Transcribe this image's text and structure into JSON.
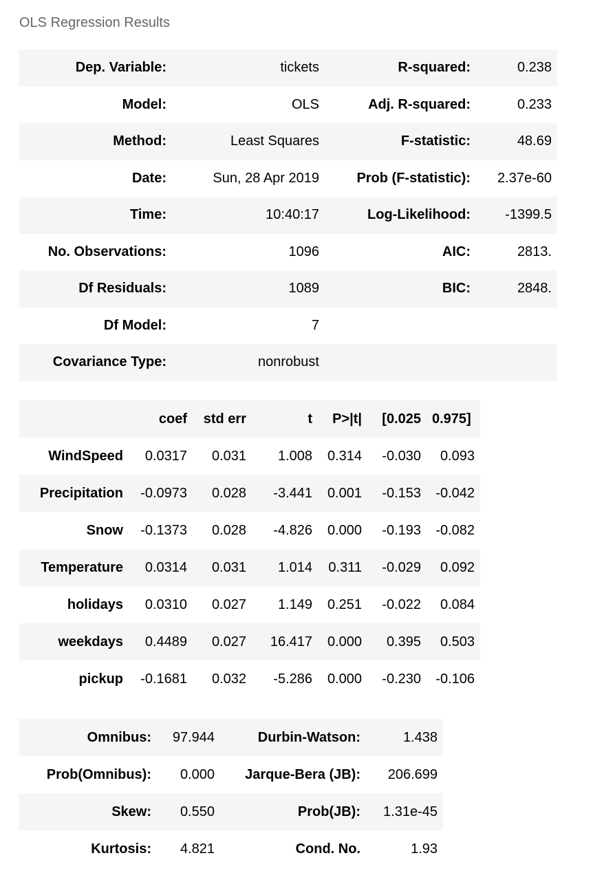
{
  "caption": "OLS Regression Results",
  "summary": {
    "rows": [
      [
        "Dep. Variable:",
        "tickets",
        "R-squared:",
        "0.238"
      ],
      [
        "Model:",
        "OLS",
        "Adj. R-squared:",
        "0.233"
      ],
      [
        "Method:",
        "Least Squares",
        "F-statistic:",
        "48.69"
      ],
      [
        "Date:",
        "Sun, 28 Apr 2019",
        "Prob (F-statistic):",
        "2.37e-60"
      ],
      [
        "Time:",
        "10:40:17",
        "Log-Likelihood:",
        "-1399.5"
      ],
      [
        "No. Observations:",
        "1096",
        "AIC:",
        "2813."
      ],
      [
        "Df Residuals:",
        "1089",
        "BIC:",
        "2848."
      ],
      [
        "Df Model:",
        "7",
        "",
        ""
      ],
      [
        "Covariance Type:",
        "nonrobust",
        "",
        ""
      ]
    ]
  },
  "coefficients": {
    "headers": [
      "",
      "coef",
      "std err",
      "t",
      "P>|t|",
      "[0.025",
      "0.975]"
    ],
    "rows": [
      [
        "WindSpeed",
        "0.0317",
        "0.031",
        "1.008",
        "0.314",
        "-0.030",
        "0.093"
      ],
      [
        "Precipitation",
        "-0.0973",
        "0.028",
        "-3.441",
        "0.001",
        "-0.153",
        "-0.042"
      ],
      [
        "Snow",
        "-0.1373",
        "0.028",
        "-4.826",
        "0.000",
        "-0.193",
        "-0.082"
      ],
      [
        "Temperature",
        "0.0314",
        "0.031",
        "1.014",
        "0.311",
        "-0.029",
        "0.092"
      ],
      [
        "holidays",
        "0.0310",
        "0.027",
        "1.149",
        "0.251",
        "-0.022",
        "0.084"
      ],
      [
        "weekdays",
        "0.4489",
        "0.027",
        "16.417",
        "0.000",
        "0.395",
        "0.503"
      ],
      [
        "pickup",
        "-0.1681",
        "0.032",
        "-5.286",
        "0.000",
        "-0.230",
        "-0.106"
      ]
    ]
  },
  "diagnostics": {
    "rows": [
      [
        "Omnibus:",
        "97.944",
        "Durbin-Watson:",
        "1.438"
      ],
      [
        "Prob(Omnibus):",
        "0.000",
        "Jarque-Bera (JB):",
        "206.699"
      ],
      [
        "Skew:",
        "0.550",
        "Prob(JB):",
        "1.31e-45"
      ],
      [
        "Kurtosis:",
        "4.821",
        "Cond. No.",
        "1.93"
      ]
    ]
  }
}
